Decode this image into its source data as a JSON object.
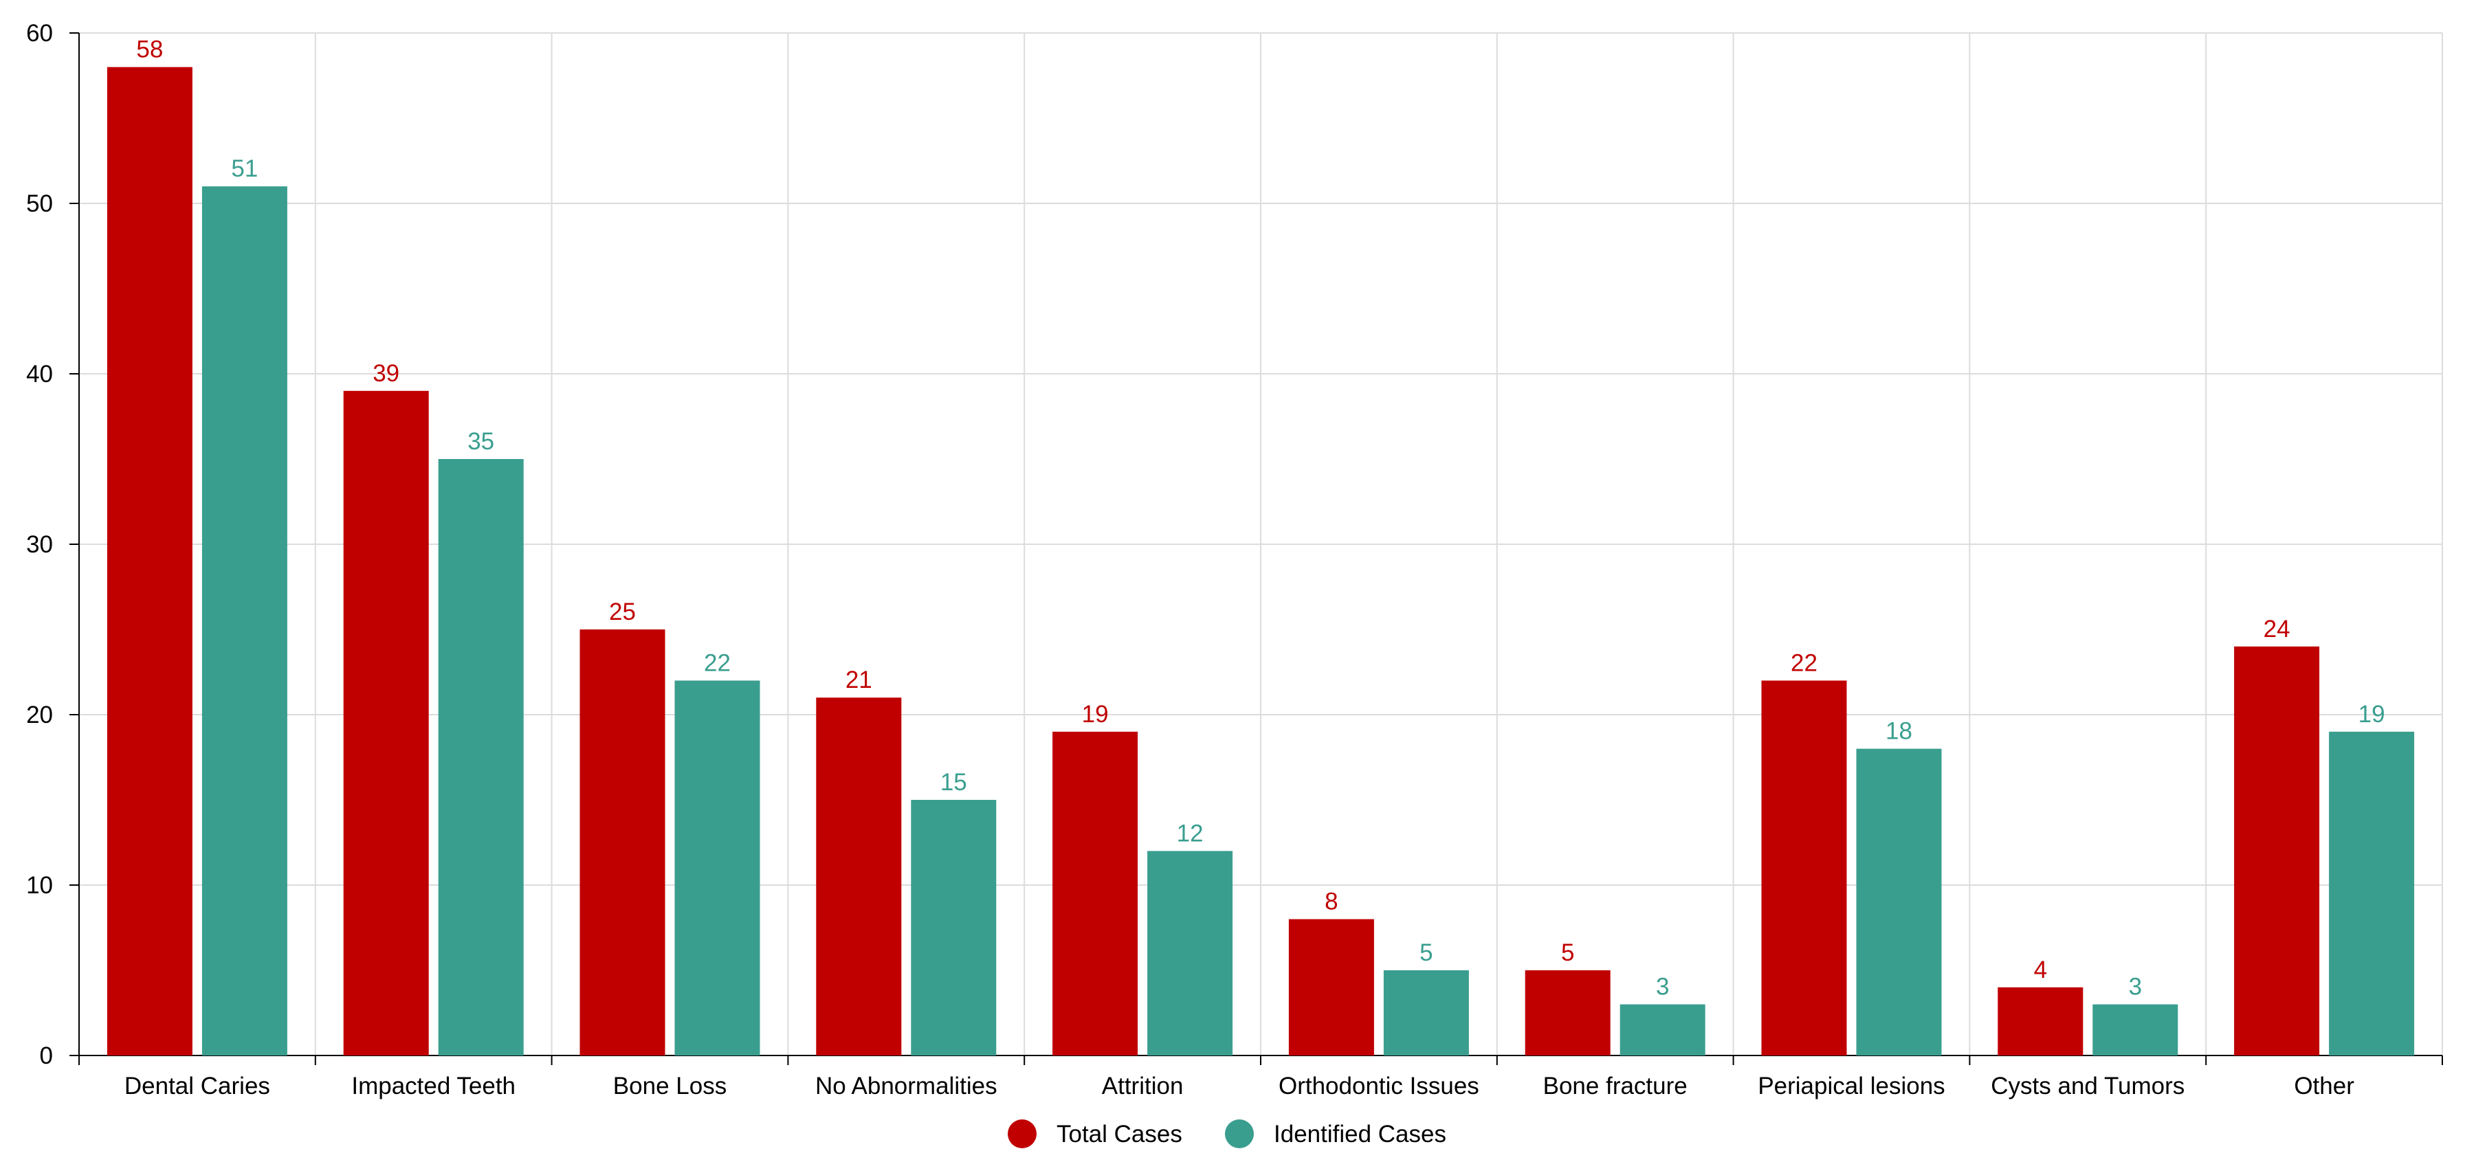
{
  "chart_data": {
    "type": "bar",
    "title": "",
    "xlabel": "",
    "ylabel": "",
    "ylim": [
      0,
      60
    ],
    "yticks": [
      0,
      10,
      20,
      30,
      40,
      50,
      60
    ],
    "grid": true,
    "legend_position": "bottom-center",
    "categories": [
      "Dental Caries",
      "Impacted Teeth",
      "Bone Loss",
      "No Abnormalities",
      "Attrition",
      "Orthodontic Issues",
      "Bone fracture",
      "Periapical lesions",
      "Cysts and Tumors",
      "Other"
    ],
    "series": [
      {
        "name": "Total Cases",
        "color": "#c00000",
        "values": [
          58,
          39,
          25,
          21,
          19,
          8,
          5,
          22,
          4,
          24
        ]
      },
      {
        "name": "Identified Cases",
        "color": "#3a9e8f",
        "values": [
          51,
          35,
          22,
          15,
          12,
          5,
          3,
          18,
          3,
          19
        ]
      }
    ]
  }
}
